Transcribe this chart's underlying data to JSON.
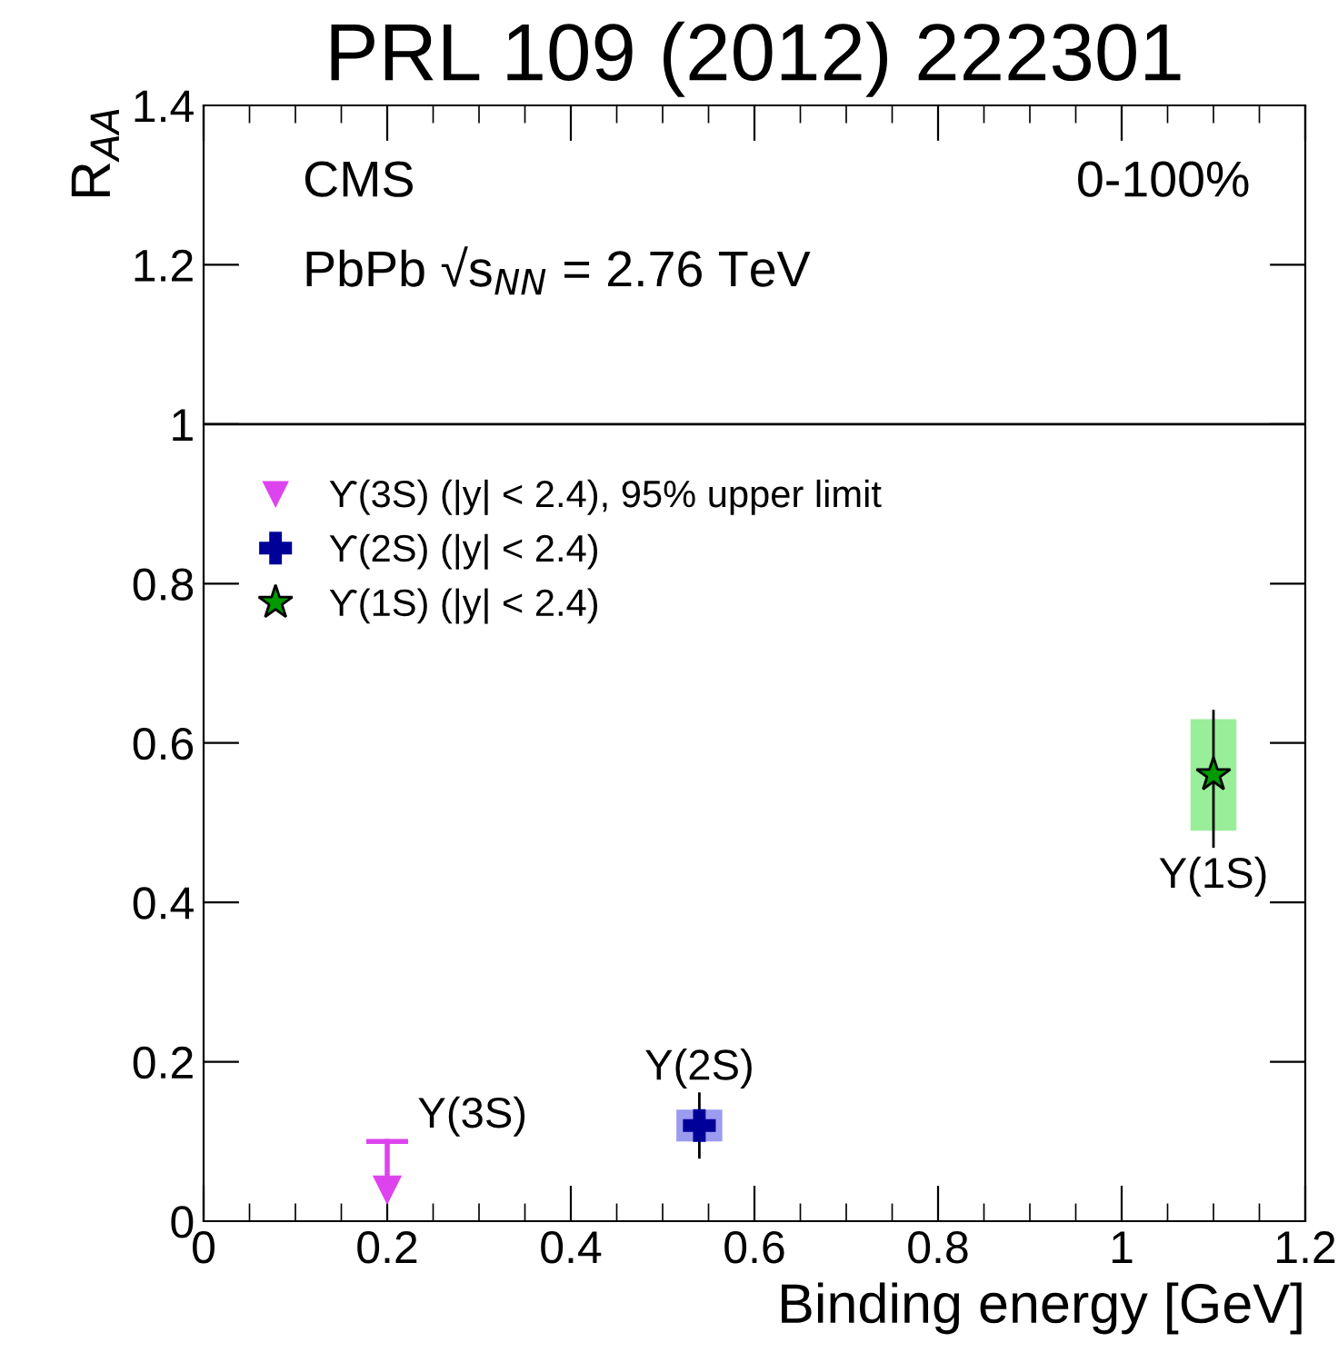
{
  "chart_data": {
    "type": "scatter",
    "title": "PRL 109 (2012) 222301",
    "xlabel": "Binding energy [GeV]",
    "ylabel": "R$_{AA}$",
    "xlim": [
      0,
      1.2
    ],
    "ylim": [
      0,
      1.4
    ],
    "xticks": [
      0,
      0.2,
      0.4,
      0.6,
      0.8,
      {
        "value": 1.0,
        "label": "1"
      },
      1.2
    ],
    "yticks": [
      0,
      0.2,
      0.4,
      0.6,
      0.8,
      {
        "value": 1.0,
        "label": "1"
      },
      1.2,
      1.4
    ],
    "grid": false,
    "legend": "left",
    "series": [
      {
        "type": "bar",
        "x": [
          0.54
        ],
        "base": [
          0.1
        ],
        "values": [
          0.04
        ],
        "color": "#9b9bf0"
      },
      {
        "type": "bar",
        "x": [
          1.1
        ],
        "base": [
          0.49
        ],
        "values": [
          0.14
        ],
        "color": "#99ee99"
      },
      {
        "name": "ϒ(3S) (|y| < 2.4), 95% upper limit",
        "marker": "triangle",
        "x": [
          0.2
        ],
        "values": [
          0.04
        ],
        "errors": [
          [
            0.04,
            0.1
          ]
        ],
        "color": "#dd44ee"
      },
      {
        "name": "ϒ(2S) (|y| < 2.4)",
        "marker": "cross",
        "x": [
          0.54
        ],
        "values": [
          0.12
        ],
        "errors": [
          [
            0.08,
            0.16
          ]
        ],
        "color": "#000099"
      },
      {
        "name": "ϒ(1S) (|y| < 2.4)",
        "marker": "star",
        "x": [
          1.1
        ],
        "values": [
          0.56
        ],
        "errors": [
          [
            0.47,
            0.64
          ]
        ],
        "color": "#009900"
      }
    ],
    "ref_lines": [
      {
        "axis": "y",
        "value": 1,
        "color": "#000000",
        "line_style": "solid"
      }
    ],
    "annotations": [
      "CMS",
      "PbPb √s$_{NN}$ = 2.76 TeV",
      "0-100%",
      "Υ(3S)",
      "Υ(2S)",
      "Υ(1S)"
    ]
  }
}
